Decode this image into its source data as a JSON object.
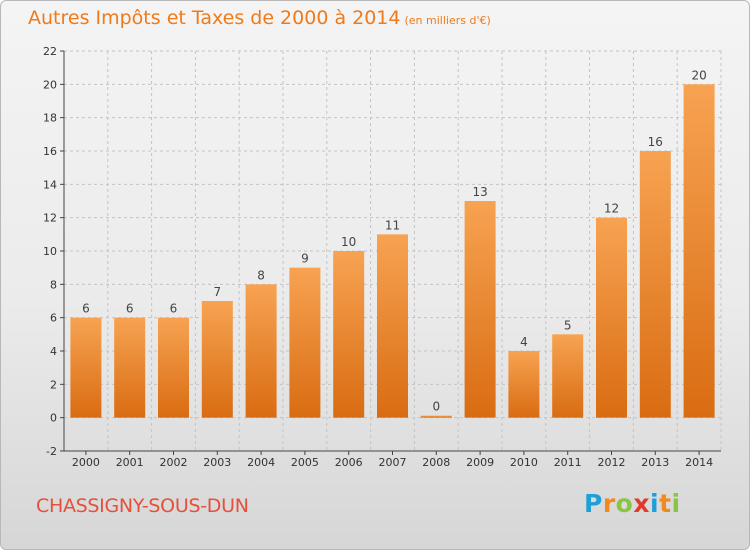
{
  "header": {
    "title": "Autres Impôts et Taxes de 2000 à 2014",
    "unit": "(en milliers d'€)"
  },
  "footer": {
    "commune": "CHASSIGNY-SOUS-DUN",
    "logo_letters": [
      "P",
      "r",
      "o",
      "x",
      "i",
      "t",
      "i"
    ],
    "logo_colors": [
      "#1f9fd8",
      "#f08a1c",
      "#8bc53f",
      "#e03a2f",
      "#1f9fd8",
      "#f08a1c",
      "#8bc53f"
    ]
  },
  "colors": {
    "bar_top": "#f7a352",
    "bar_bottom": "#d96c12",
    "title": "#f07a1a",
    "commune": "#e64f3a",
    "axis": "#444444"
  },
  "chart_data": {
    "type": "bar",
    "title": "Autres Impôts et Taxes de 2000 à 2014",
    "xlabel": "",
    "ylabel": "",
    "categories": [
      "2000",
      "2001",
      "2002",
      "2003",
      "2004",
      "2005",
      "2006",
      "2007",
      "2008",
      "2009",
      "2010",
      "2011",
      "2012",
      "2013",
      "2014"
    ],
    "values": [
      6,
      6,
      6,
      7,
      8,
      9,
      10,
      11,
      0,
      13,
      4,
      5,
      12,
      16,
      20
    ],
    "ylim": [
      -2,
      22
    ],
    "yticks": [
      -2,
      0,
      2,
      4,
      6,
      8,
      10,
      12,
      14,
      16,
      18,
      20,
      22
    ],
    "grid": true,
    "data_labels": true
  }
}
